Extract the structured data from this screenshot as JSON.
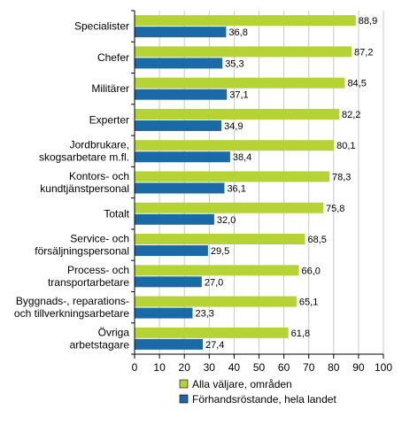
{
  "chart_data": {
    "type": "bar",
    "orientation": "horizontal",
    "categories": [
      [
        "Specialister"
      ],
      [
        "Chefer"
      ],
      [
        "Militärer"
      ],
      [
        "Experter"
      ],
      [
        "Jordbrukare,",
        "skogsarbetare m.fl."
      ],
      [
        "Kontors- och",
        "kundtjänstpersonal"
      ],
      [
        "Totalt"
      ],
      [
        "Service- och",
        "försäljningspersonal"
      ],
      [
        "Process- och",
        "transportarbetare"
      ],
      [
        "Byggnads-, reparations-",
        "och tillverkningsarbetare"
      ],
      [
        "Övriga",
        "arbetstagare"
      ]
    ],
    "series": [
      {
        "name": "Alla väljare, områden",
        "color": "#b5d334",
        "values": [
          88.9,
          87.2,
          84.5,
          82.2,
          80.1,
          78.3,
          75.8,
          68.5,
          66.0,
          65.1,
          61.8
        ],
        "labels": [
          "88,9",
          "87,2",
          "84,5",
          "82,2",
          "80,1",
          "78,3",
          "75,8",
          "68,5",
          "66,0",
          "65,1",
          "61,8"
        ]
      },
      {
        "name": "Förhandsröstande, hela landet",
        "color": "#1a6aa8",
        "values": [
          36.8,
          35.3,
          37.1,
          34.9,
          38.4,
          36.1,
          32.0,
          29.5,
          27.0,
          23.3,
          27.4
        ],
        "labels": [
          "36,8",
          "35,3",
          "37,1",
          "34,9",
          "38,4",
          "36,1",
          "32,0",
          "29,5",
          "27,0",
          "23,3",
          "27,4"
        ]
      }
    ],
    "xlim": [
      0,
      100
    ],
    "xticks": [
      "0",
      "10",
      "20",
      "30",
      "40",
      "50",
      "60",
      "70",
      "80",
      "90",
      "100"
    ],
    "grid": true,
    "legend_position": "bottom"
  }
}
